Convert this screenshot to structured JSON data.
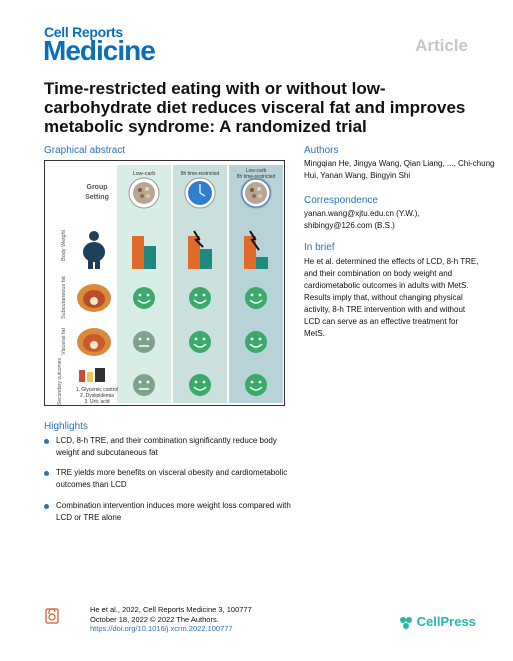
{
  "header": {
    "journal_line1": "Cell Reports",
    "journal_line2": "Medicine",
    "article_type": "Article"
  },
  "title": "Time-restricted eating with or without low-carbohydrate diet reduces visceral fat and improves metabolic syndrome: A randomized trial",
  "graphical_abstract": {
    "heading": "Graphical abstract",
    "group_setting": "Group Setting",
    "columns": [
      "Low-carb",
      "8h time-restricted",
      "Low-carb 8h time-restricted"
    ],
    "row_labels": [
      "Body Weight",
      "Subcutaneous fat",
      "Visceral fat",
      "Secondary outcomes"
    ],
    "secondary_outcomes": [
      "1. Glycemic control",
      "2. Dyslipidemia",
      "3. Uric acid"
    ],
    "colors": {
      "col1_bg": "#d9ede7",
      "col2_bg": "#c9e0dc",
      "col3_bg": "#b7d3d8",
      "bar_orange": "#e06a2a",
      "bar_teal": "#1e8a7f",
      "face_green": "#3aaa6a",
      "face_gray": "#7da38d"
    }
  },
  "authors": {
    "heading": "Authors",
    "text": "Mingqian He, Jingya Wang, Qian Liang, ..., Chi-chung Hui, Yanan Wang, Bingyin Shi"
  },
  "correspondence": {
    "heading": "Correspondence",
    "line1": "yanan.wang@xjtu.edu.cn (Y.W.),",
    "line2": "shibingy@126.com (B.S.)"
  },
  "in_brief": {
    "heading": "In brief",
    "text": "He et al. determined the effects of LCD, 8-h TRE, and their combination on body weight and cardiometabolic outcomes in adults with MetS. Results imply that, without changing physical activity, 8-h TRE intervention with and without LCD can serve as an effective treatment for MetS."
  },
  "highlights": {
    "heading": "Highlights",
    "items": [
      "LCD, 8-h TRE, and their combination significantly reduce body weight and subcutaneous fat",
      "TRE yields more benefits on visceral obesity and cardiometabolic outcomes than LCD",
      "Combination intervention induces more weight loss compared with LCD or TRE alone"
    ]
  },
  "footer": {
    "line1": "He et al., 2022, Cell Reports Medicine 3, 100777",
    "line2": "October 18, 2022 © 2022 The Authors.",
    "doi": "https://doi.org/10.1016/j.xcrm.2022.100777",
    "publisher": "CellPress"
  }
}
